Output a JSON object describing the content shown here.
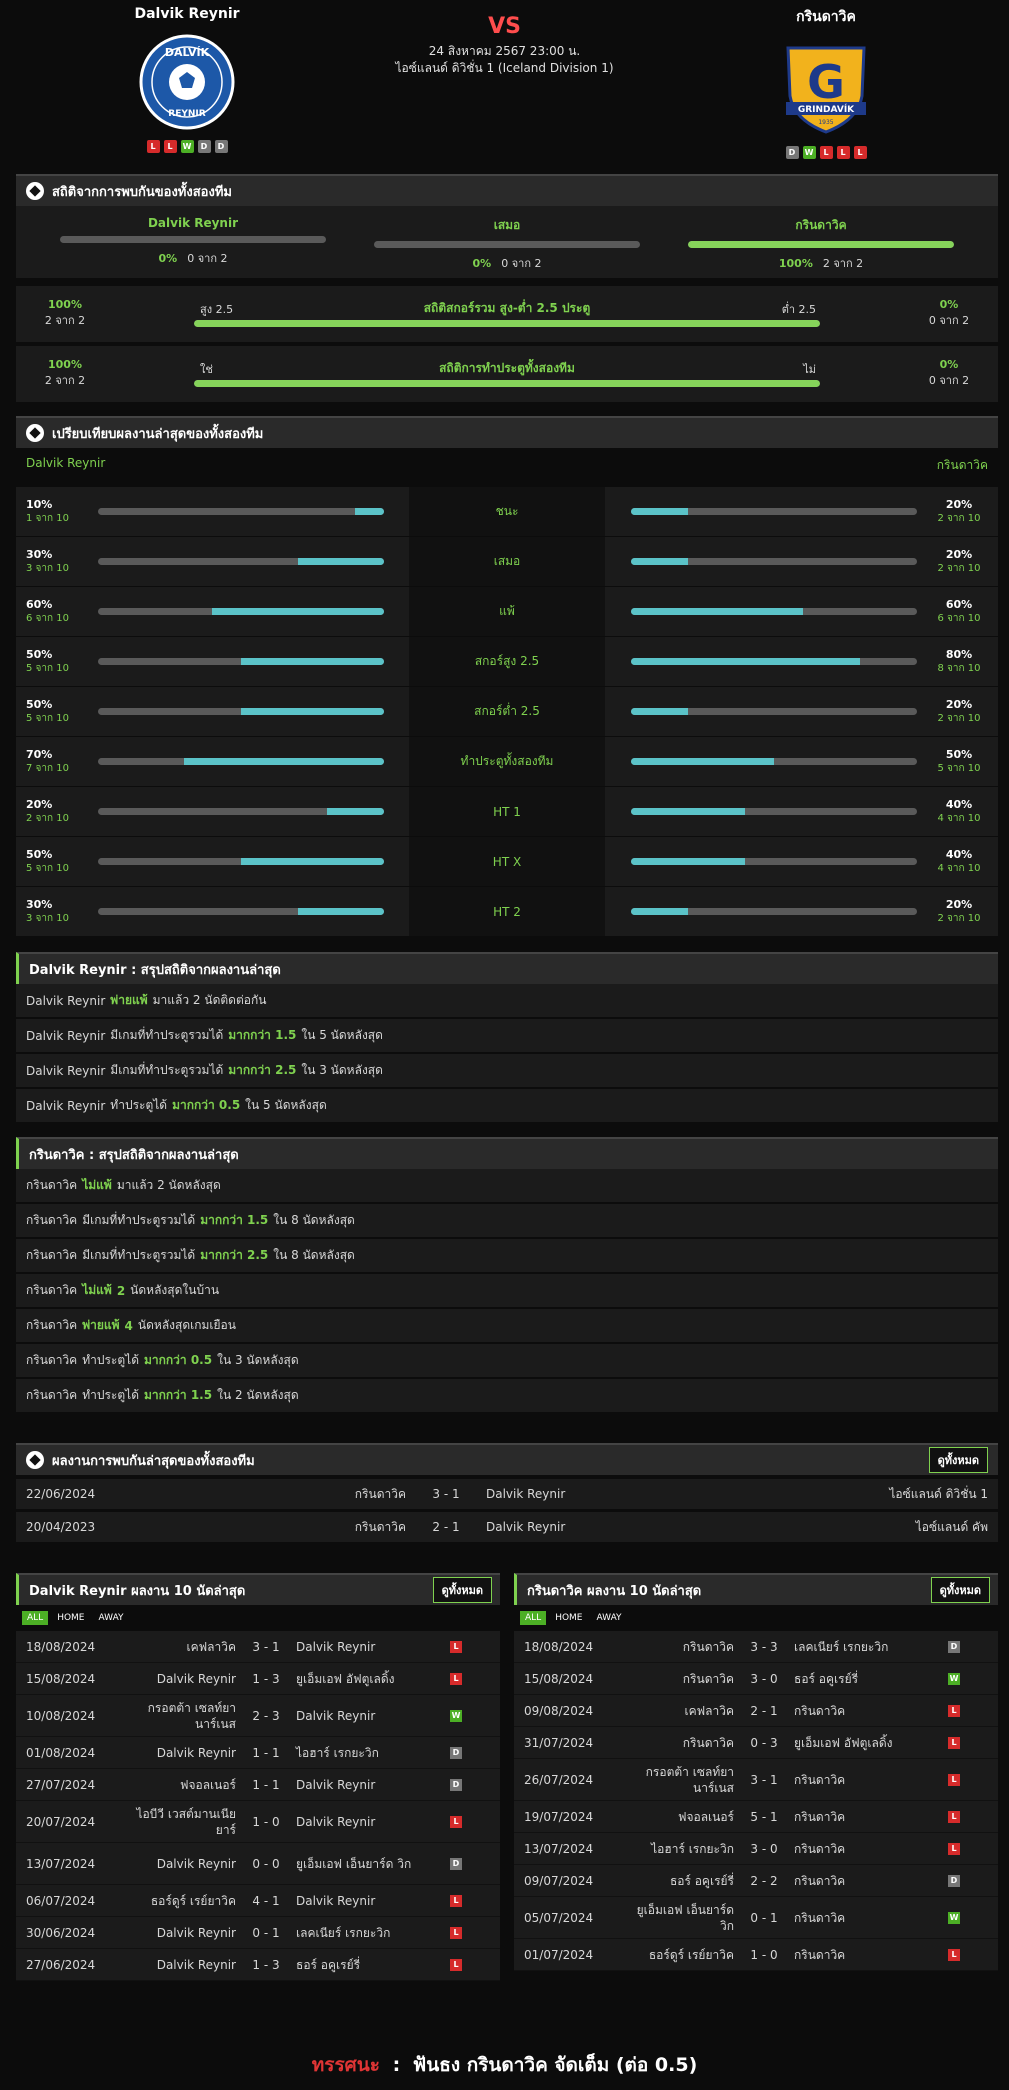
{
  "match": {
    "home": "Dalvik Reynir",
    "away": "กรินดาวิค",
    "vs": "VS",
    "datetime": "24 สิงหาคม 2567 23:00 น.",
    "league": "ไอซ์แลนด์ ดิวิชั่น 1 (Iceland Division 1)",
    "home_form": [
      "L",
      "L",
      "W",
      "D",
      "D"
    ],
    "away_form": [
      "D",
      "W",
      "L",
      "L",
      "L"
    ],
    "away_logo_text": "GRINDAVÍK",
    "away_logo_year": "1935",
    "home_logo_text": "DALVÍK",
    "home_logo_text2": "REYNIR"
  },
  "h2h_stats": {
    "title": "สถิติจากการพบกันของทั้งสองทีม",
    "cols": [
      {
        "label": "Dalvik Reynir",
        "pct": "0%",
        "sub": "0 จาก 2",
        "fill": 0
      },
      {
        "label": "เสมอ",
        "pct": "0%",
        "sub": "0 จาก 2",
        "fill": 0
      },
      {
        "label": "กรินดาวิค",
        "pct": "100%",
        "sub": "2 จาก 2",
        "fill": 1
      }
    ],
    "ou": {
      "left_pct": "100%",
      "left_sub": "2 จาก 2",
      "left_label": "สูง 2.5",
      "title": "สถิติสกอร์รวม สูง-ต่ำ 2.5 ประตู",
      "right_label": "ต่ำ 2.5",
      "right_pct": "0%",
      "right_sub": "0 จาก 2",
      "fill": 1
    },
    "btts": {
      "left_pct": "100%",
      "left_sub": "2 จาก 2",
      "left_label": "ใช่",
      "title": "สถิติการทำประตูทั้งสองทีม",
      "right_label": "ไม่",
      "right_pct": "0%",
      "right_sub": "0 จาก 2",
      "fill": 1
    }
  },
  "compare": {
    "title": "เปรียบเทียบผลงานล่าสุดของทั้งสองทีม",
    "home": "Dalvik Reynir",
    "away": "กรินดาวิค",
    "rows": [
      {
        "label": "ชนะ",
        "hp": "10%",
        "hs": "1 จาก 10",
        "hv": 0.1,
        "ap": "20%",
        "as": "2 จาก 10",
        "av": 0.2
      },
      {
        "label": "เสมอ",
        "hp": "30%",
        "hs": "3 จาก 10",
        "hv": 0.3,
        "ap": "20%",
        "as": "2 จาก 10",
        "av": 0.2
      },
      {
        "label": "แพ้",
        "hp": "60%",
        "hs": "6 จาก 10",
        "hv": 0.6,
        "ap": "60%",
        "as": "6 จาก 10",
        "av": 0.6
      },
      {
        "label": "สกอร์สูง 2.5",
        "hp": "50%",
        "hs": "5 จาก 10",
        "hv": 0.5,
        "ap": "80%",
        "as": "8 จาก 10",
        "av": 0.8
      },
      {
        "label": "สกอร์ต่ำ 2.5",
        "hp": "50%",
        "hs": "5 จาก 10",
        "hv": 0.5,
        "ap": "20%",
        "as": "2 จาก 10",
        "av": 0.2
      },
      {
        "label": "ทำประตูทั้งสองทีม",
        "hp": "70%",
        "hs": "7 จาก 10",
        "hv": 0.7,
        "ap": "50%",
        "as": "5 จาก 10",
        "av": 0.5
      },
      {
        "label": "HT 1",
        "hp": "20%",
        "hs": "2 จาก 10",
        "hv": 0.2,
        "ap": "40%",
        "as": "4 จาก 10",
        "av": 0.4
      },
      {
        "label": "HT X",
        "hp": "50%",
        "hs": "5 จาก 10",
        "hv": 0.5,
        "ap": "40%",
        "as": "4 จาก 10",
        "av": 0.4
      },
      {
        "label": "HT 2",
        "hp": "30%",
        "hs": "3 จาก 10",
        "hv": 0.3,
        "ap": "20%",
        "as": "2 จาก 10",
        "av": 0.2
      }
    ]
  },
  "home_summary": {
    "title": "Dalvik Reynir : สรุปสถิติจากผลงานล่าสุด",
    "rows": [
      [
        "Dalvik Reynir",
        "พ่ายแพ้",
        "มาแล้ว 2 นัดติดต่อกัน"
      ],
      [
        "Dalvik Reynir",
        "มีเกมที่ทำประตูรวมได้",
        "มากกว่า 1.5",
        "ใน 5 นัดหลังสุด"
      ],
      [
        "Dalvik Reynir",
        "มีเกมที่ทำประตูรวมได้",
        "มากกว่า 2.5",
        "ใน 3 นัดหลังสุด"
      ],
      [
        "Dalvik Reynir",
        "ทำประตูได้",
        "มากกว่า 0.5",
        "ใน 5 นัดหลังสุด"
      ]
    ]
  },
  "away_summary": {
    "title": "กรินดาวิค : สรุปสถิติจากผลงานล่าสุด",
    "rows": [
      [
        "กรินดาวิค",
        "ไม่แพ้",
        "มาแล้ว 2 นัดหลังสุด"
      ],
      [
        "กรินดาวิค",
        "มีเกมที่ทำประตูรวมได้",
        "มากกว่า 1.5",
        "ใน 8 นัดหลังสุด"
      ],
      [
        "กรินดาวิค",
        "มีเกมที่ทำประตูรวมได้",
        "มากกว่า 2.5",
        "ใน 8 นัดหลังสุด"
      ],
      [
        "กรินดาวิค",
        "ไม่แพ้",
        "2",
        "นัดหลังสุดในบ้าน"
      ],
      [
        "กรินดาวิค",
        "พ่ายแพ้",
        "4",
        "นัดหลังสุดเกมเยือน"
      ],
      [
        "กรินดาวิค",
        "ทำประตูได้",
        "มากกว่า 0.5",
        "ใน 3 นัดหลังสุด"
      ],
      [
        "กรินดาวิค",
        "ทำประตูได้",
        "มากกว่า 1.5",
        "ใน 2 นัดหลังสุด"
      ]
    ]
  },
  "h2h_matches": {
    "title": "ผลงานการพบกันล่าสุดของทั้งสองทีม",
    "see_all": "ดูทั้งหมด",
    "rows": [
      {
        "date": "22/06/2024",
        "home": "กรินดาวิค",
        "score": "3 - 1",
        "away": "Dalvik Reynir",
        "league": "ไอซ์แลนด์ ดิวิชั่น 1"
      },
      {
        "date": "20/04/2023",
        "home": "กรินดาวิค",
        "score": "2 - 1",
        "away": "Dalvik Reynir",
        "league": "ไอซ์แลนด์ คัพ"
      }
    ]
  },
  "last10_home": {
    "title": "Dalvik Reynir ผลงาน 10 นัดล่าสุด",
    "see_all": "ดูทั้งหมด",
    "tabs": [
      "ALL",
      "HOME",
      "AWAY"
    ],
    "rows": [
      {
        "date": "18/08/2024",
        "home": "เคฟลาวิค",
        "score": "3 - 1",
        "away": "Dalvik Reynir",
        "r": "L",
        "h": 33
      },
      {
        "date": "15/08/2024",
        "home": "Dalvik Reynir",
        "score": "1 - 3",
        "away": "ยูเอ็มเอฟ อัฟตูเลดิ้ง",
        "r": "L",
        "h": 33
      },
      {
        "date": "10/08/2024",
        "home": "กรอตต้า เซลท์ยา นาร์เนส",
        "score": "2 - 3",
        "away": "Dalvik Reynir",
        "r": "W",
        "h": 50
      },
      {
        "date": "01/08/2024",
        "home": "Dalvik Reynir",
        "score": "1 - 1",
        "away": "ไอฮาร์ เรกยะวิก",
        "r": "D",
        "h": 33
      },
      {
        "date": "27/07/2024",
        "home": "ฟจอลเนอร์",
        "score": "1 - 1",
        "away": "Dalvik Reynir",
        "r": "D",
        "h": 33
      },
      {
        "date": "20/07/2024",
        "home": "ไอบีวี เวสต์มานเนีย ยาร์",
        "score": "1 - 0",
        "away": "Dalvik Reynir",
        "r": "L",
        "h": 50
      },
      {
        "date": "13/07/2024",
        "home": "Dalvik Reynir",
        "score": "0 - 0",
        "away": "ยูเอ็มเอฟ เอ็นยาร์ด วิก",
        "r": "D",
        "h": 50
      },
      {
        "date": "06/07/2024",
        "home": "ธอร์ดูร์ เรย์ยาวิค",
        "score": "4 - 1",
        "away": "Dalvik Reynir",
        "r": "L",
        "h": 33
      },
      {
        "date": "30/06/2024",
        "home": "Dalvik Reynir",
        "score": "0 - 1",
        "away": "เลคเนียร์ เรกยะวิก",
        "r": "L",
        "h": 33
      },
      {
        "date": "27/06/2024",
        "home": "Dalvik Reynir",
        "score": "1 - 3",
        "away": "ธอร์ อคูเรย์รี่",
        "r": "L",
        "h": 33
      }
    ]
  },
  "last10_away": {
    "title": "กรินดาวิค ผลงาน 10 นัดล่าสุด",
    "see_all": "ดูทั้งหมด",
    "tabs": [
      "ALL",
      "HOME",
      "AWAY"
    ],
    "rows": [
      {
        "date": "18/08/2024",
        "home": "กรินดาวิค",
        "score": "3 - 3",
        "away": "เลคเนียร์ เรกยะวิก",
        "r": "D",
        "h": 33
      },
      {
        "date": "15/08/2024",
        "home": "กรินดาวิค",
        "score": "3 - 0",
        "away": "ธอร์ อคูเรย์รี่",
        "r": "W",
        "h": 33
      },
      {
        "date": "09/08/2024",
        "home": "เคฟลาวิค",
        "score": "2 - 1",
        "away": "กรินดาวิค",
        "r": "L",
        "h": 33
      },
      {
        "date": "31/07/2024",
        "home": "กรินดาวิค",
        "score": "0 - 3",
        "away": "ยูเอ็มเอฟ อัฟตูเลดิ้ง",
        "r": "L",
        "h": 33
      },
      {
        "date": "26/07/2024",
        "home": "กรอตต้า เซลท์ยา นาร์เนส",
        "score": "3 - 1",
        "away": "กรินดาวิค",
        "r": "L",
        "h": 50
      },
      {
        "date": "19/07/2024",
        "home": "ฟจอลเนอร์",
        "score": "5 - 1",
        "away": "กรินดาวิค",
        "r": "L",
        "h": 33
      },
      {
        "date": "13/07/2024",
        "home": "ไอฮาร์ เรกยะวิก",
        "score": "3 - 0",
        "away": "กรินดาวิค",
        "r": "L",
        "h": 33
      },
      {
        "date": "09/07/2024",
        "home": "ธอร์ อคูเรย์รี่",
        "score": "2 - 2",
        "away": "กรินดาวิค",
        "r": "D",
        "h": 33
      },
      {
        "date": "05/07/2024",
        "home": "ยูเอ็มเอฟ เอ็นยาร์ด วิก",
        "score": "0 - 1",
        "away": "กรินดาวิค",
        "r": "W",
        "h": 50
      },
      {
        "date": "01/07/2024",
        "home": "ธอร์ดูร์ เรย์ยาวิค",
        "score": "1 - 0",
        "away": "กรินดาวิค",
        "r": "L",
        "h": 33
      }
    ]
  },
  "verdict": {
    "label": "ทรรศนะ",
    "sep": ":",
    "text": "ฟันธง กรินดาวิค จัดเต็ม (ต่อ 0.5)"
  },
  "colors": {
    "accent": "#7fd14f",
    "bar_home": "#5bc3c8",
    "lose": "#d62b2b",
    "win": "#4caf25",
    "draw": "#777777"
  }
}
